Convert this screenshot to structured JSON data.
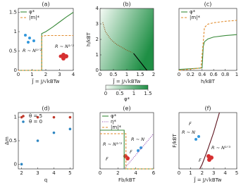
{
  "chart_data": [
    {
      "type": "line",
      "title": "(a)",
      "xlabel": "J̃ = J/√kBTw",
      "xlim": [
        0,
        4
      ],
      "xticks": [
        0,
        1,
        2,
        3,
        4
      ],
      "ylim": [
        0,
        1.6
      ],
      "yticks": [
        0,
        0.5,
        1,
        1.5
      ],
      "legend": "upper left",
      "series": [
        {
          "name": "φ*",
          "color": "#3a8a3a",
          "style": "solid",
          "x": [
            0,
            1.7,
            1.7,
            2,
            2.5,
            3,
            3.5,
            4
          ],
          "values": [
            0,
            0,
            0.95,
            1.0,
            1.12,
            1.25,
            1.38,
            1.5
          ]
        },
        {
          "name": "|m|*",
          "color": "#e08a2a",
          "style": "dashed",
          "x": [
            0,
            1.7,
            1.7,
            2,
            4
          ],
          "values": [
            0,
            0,
            0.88,
            0.9,
            0.9
          ]
        }
      ],
      "annotations": [
        "R ∼ N¹ᐟ²",
        "R ∼ N¹ᐟ³"
      ]
    },
    {
      "type": "phase",
      "title": "(b)",
      "xlabel": "J̃ = J/√kBTw",
      "ylabel": "h/kBT",
      "xlim": [
        0,
        2
      ],
      "xticks": [
        0,
        0.5,
        1,
        1.5,
        2
      ],
      "ylim": [
        0,
        4
      ],
      "yticks": [
        0,
        1,
        2,
        3,
        4
      ],
      "colormap": [
        "#f6fbf6",
        "#1f8f45"
      ],
      "clim": [
        0,
        1.5
      ],
      "cticks": [
        0,
        0.5,
        1,
        1.5
      ],
      "clabel": "φ*",
      "series": [
        {
          "color": "#8a4a10",
          "style": "dotted",
          "x": [
            0.1,
            0.2,
            0.4,
            0.6,
            0.8,
            1.0,
            1.2
          ],
          "values": [
            3.1,
            2.5,
            2.0,
            1.7,
            1.5,
            1.3,
            1.15
          ]
        },
        {
          "color": "#000000",
          "style": "solid",
          "x": [
            1.25,
            1.5,
            1.75
          ],
          "values": [
            1.1,
            0.55,
            0
          ]
        }
      ]
    },
    {
      "type": "line",
      "title": "(c)",
      "xlabel": "h/kBT",
      "xlim": [
        0,
        1
      ],
      "xticks": [
        0,
        0.2,
        0.4,
        0.6,
        0.8,
        1
      ],
      "ylim": [
        0,
        1.3
      ],
      "legend": "upper left",
      "series": [
        {
          "name": "φ*",
          "color": "#3a8a3a",
          "style": "solid",
          "x": [
            0,
            0.4,
            0.42,
            0.44,
            0.5,
            0.6,
            0.8,
            1
          ],
          "values": [
            0.02,
            0.05,
            0.5,
            0.6,
            0.66,
            0.7,
            0.73,
            0.75
          ]
        },
        {
          "name": "|m|*",
          "color": "#e08a2a",
          "style": "dashed",
          "x": [
            0,
            0.38,
            0.42,
            0.44,
            0.5,
            0.6,
            0.8,
            1
          ],
          "values": [
            0,
            0.05,
            0.6,
            0.9,
            0.97,
            1.0,
            1.03,
            1.05
          ]
        }
      ]
    },
    {
      "type": "scatter",
      "title": "(d)",
      "xlabel": "q",
      "ylabel": "Δm",
      "xlim": [
        1.8,
        5.2
      ],
      "xticks": [
        2,
        3,
        4,
        5
      ],
      "ylim": [
        -0.1,
        1.1
      ],
      "yticks": [
        0,
        0.5,
        1
      ],
      "legend": "upper left",
      "series": [
        {
          "name": "θ = 5",
          "color": "#c0392b",
          "x": [
            2,
            3,
            4,
            5
          ],
          "values": [
            1,
            1,
            1,
            1
          ]
        },
        {
          "name": "θ = 0",
          "color": "#2e86c1",
          "x": [
            2,
            3,
            4,
            5
          ],
          "values": [
            0,
            0.5,
            0.67,
            0.75
          ]
        }
      ]
    },
    {
      "type": "line",
      "title": "(e)",
      "xlabel": "Fb/kBT",
      "xlim": [
        0,
        6
      ],
      "xticks": [
        0,
        2,
        4,
        6
      ],
      "ylim": [
        0,
        1.6
      ],
      "legend": "upper left",
      "series": [
        {
          "name": "φ*",
          "color": "#3a8a3a",
          "style": "solid",
          "x": [
            0,
            2.7,
            2.7,
            6
          ],
          "values": [
            1.1,
            1.1,
            0,
            0
          ]
        },
        {
          "name": "η*",
          "color": "#8e44ad",
          "style": "dotted",
          "x": [
            2.7,
            6
          ],
          "values": [
            0,
            1.0
          ]
        },
        {
          "name": "|m|*",
          "color": "#e08a2a",
          "style": "dashed",
          "x": [
            0,
            2.9,
            2.9,
            6
          ],
          "values": [
            1.0,
            1.0,
            0,
            0
          ]
        }
      ],
      "annotations": [
        "R ∼ N¹ᐟ³",
        "R ∼ N",
        "F",
        "F"
      ]
    },
    {
      "type": "line",
      "title": "(f)",
      "xlabel": "J̃ = J/√kBTw",
      "ylabel": "F/kBT",
      "xlim": [
        0,
        5
      ],
      "xticks": [
        0,
        1,
        2,
        3,
        4,
        5
      ],
      "ylim": [
        0,
        10
      ],
      "series": [
        {
          "color": "#5a0f1a",
          "style": "solid",
          "x": [
            1.8,
            2,
            2.5,
            3,
            3.5
          ],
          "values": [
            0,
            0.8,
            3.5,
            6.5,
            10
          ]
        }
      ],
      "annotations": [
        "R ∼ N",
        "R ∼ N¹ᐟ³",
        "F",
        "F"
      ]
    }
  ]
}
